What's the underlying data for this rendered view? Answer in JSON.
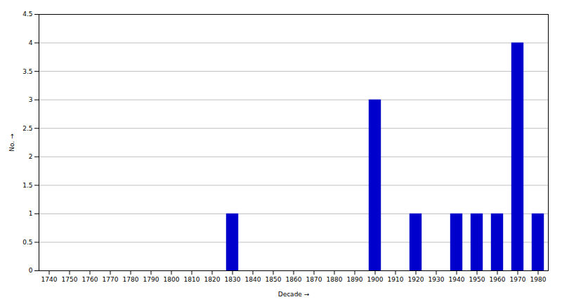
{
  "chart_data": {
    "type": "bar",
    "xlabel": "Decade",
    "ylabel": "No.",
    "x": [
      1740,
      1750,
      1760,
      1770,
      1780,
      1790,
      1800,
      1810,
      1820,
      1830,
      1840,
      1850,
      1860,
      1870,
      1880,
      1890,
      1900,
      1910,
      1920,
      1930,
      1940,
      1950,
      1960,
      1970,
      1980
    ],
    "values": [
      0,
      0,
      0,
      0,
      0,
      0,
      0,
      0,
      0,
      1,
      0,
      0,
      0,
      0,
      0,
      0,
      3,
      0,
      1,
      0,
      1,
      1,
      1,
      4,
      1
    ],
    "color": "#0000cc",
    "xlim": [
      1735,
      1985
    ],
    "ylim": [
      0,
      4.5
    ],
    "xticks": [
      1740,
      1750,
      1760,
      1770,
      1780,
      1790,
      1800,
      1810,
      1820,
      1830,
      1840,
      1850,
      1860,
      1870,
      1880,
      1890,
      1900,
      1910,
      1920,
      1930,
      1940,
      1950,
      1960,
      1970,
      1980
    ],
    "yticks": [
      0,
      0.5,
      1,
      1.5,
      2,
      2.5,
      3,
      3.5,
      4,
      4.5
    ],
    "grid": true
  }
}
